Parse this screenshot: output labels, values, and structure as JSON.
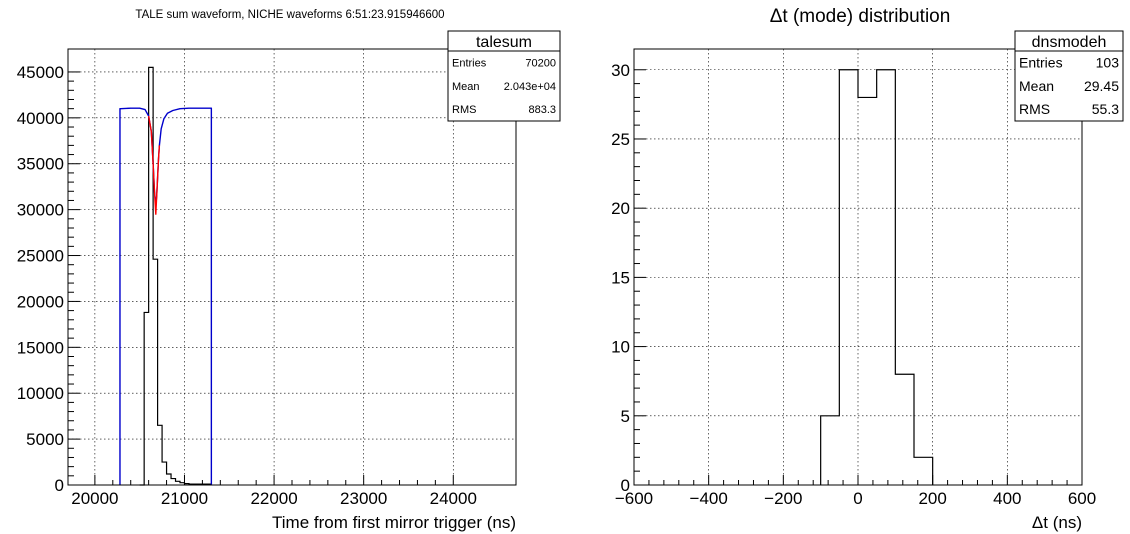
{
  "chart_data": [
    {
      "type": "histogram",
      "title": "TALE sum waveform, NICHE waveforms  6:51:23.915946600",
      "xlabel": "Time from first mirror trigger (ns)",
      "ylabel": "",
      "xlim": [
        19700,
        24700
      ],
      "ylim": [
        0,
        47500
      ],
      "x_ticks": [
        20000,
        21000,
        22000,
        23000,
        24000
      ],
      "x_tick_labels": [
        "20000",
        "21000",
        "22000",
        "23000",
        "24000"
      ],
      "y_ticks": [
        0,
        5000,
        10000,
        15000,
        20000,
        25000,
        30000,
        35000,
        40000,
        45000
      ],
      "y_tick_labels": [
        "0",
        "5000",
        "10000",
        "15000",
        "20000",
        "25000",
        "30000",
        "35000",
        "40000",
        "45000"
      ],
      "grid": true,
      "stats_box": {
        "name": "talesum",
        "rows": [
          {
            "label": "Entries",
            "value": "70200"
          },
          {
            "label": "Mean",
            "value": "2.043e+04"
          },
          {
            "label": "RMS",
            "value": "883.3"
          }
        ]
      },
      "series": [
        {
          "style": "histogram-step",
          "color": "#000000",
          "bin_edges": [
            20500,
            20550,
            20600,
            20650,
            20700,
            20750,
            20800,
            20850,
            20900,
            20950,
            21000,
            21050,
            21100,
            21150,
            21200,
            21250,
            21300
          ],
          "values": [
            0,
            18800,
            45500,
            24600,
            6500,
            2500,
            1200,
            700,
            400,
            250,
            150,
            100,
            100,
            100,
            100,
            100
          ]
        },
        {
          "style": "line",
          "color": "#0000cc",
          "x": [
            20280,
            20280,
            20290,
            20400,
            20500,
            20560,
            20600,
            20630,
            20650,
            20665,
            20680,
            20690,
            20700,
            20710,
            20720,
            20740,
            20770,
            20810,
            20870,
            20950,
            21050,
            21200,
            21300,
            21300
          ],
          "y": [
            0,
            41000,
            41000,
            41050,
            41050,
            40900,
            40200,
            38500,
            35000,
            32000,
            30500,
            31500,
            33500,
            35500,
            37000,
            38800,
            39900,
            40500,
            40800,
            41000,
            41050,
            41050,
            41050,
            0
          ]
        },
        {
          "style": "line",
          "color": "#ff0000",
          "x": [
            20600,
            20630,
            20650,
            20665,
            20680,
            20690,
            20700,
            20710,
            20720
          ],
          "y": [
            40200,
            38500,
            35000,
            32000,
            29500,
            31500,
            33500,
            35500,
            37000
          ]
        }
      ]
    },
    {
      "type": "histogram",
      "title": "Δt (mode) distribution",
      "xlabel": "Δt (ns)",
      "ylabel": "",
      "xlim": [
        -600,
        600
      ],
      "ylim": [
        0,
        31.5
      ],
      "x_ticks": [
        -600,
        -400,
        -200,
        0,
        200,
        400,
        600
      ],
      "x_tick_labels": [
        "−600",
        "−400",
        "−200",
        "0",
        "200",
        "400",
        "600"
      ],
      "y_ticks": [
        0,
        5,
        10,
        15,
        20,
        25,
        30
      ],
      "y_tick_labels": [
        "0",
        "5",
        "10",
        "15",
        "20",
        "25",
        "30"
      ],
      "grid": true,
      "stats_box": {
        "name": "dnsmodeh",
        "rows": [
          {
            "label": "Entries",
            "value": "103"
          },
          {
            "label": "Mean",
            "value": "29.45"
          },
          {
            "label": "RMS",
            "value": "55.3"
          }
        ]
      },
      "series": [
        {
          "style": "histogram-step",
          "color": "#000000",
          "bin_edges": [
            -100,
            -50,
            0,
            50,
            100,
            150,
            200
          ],
          "values": [
            5,
            30,
            28,
            30,
            8,
            2
          ]
        }
      ]
    }
  ]
}
